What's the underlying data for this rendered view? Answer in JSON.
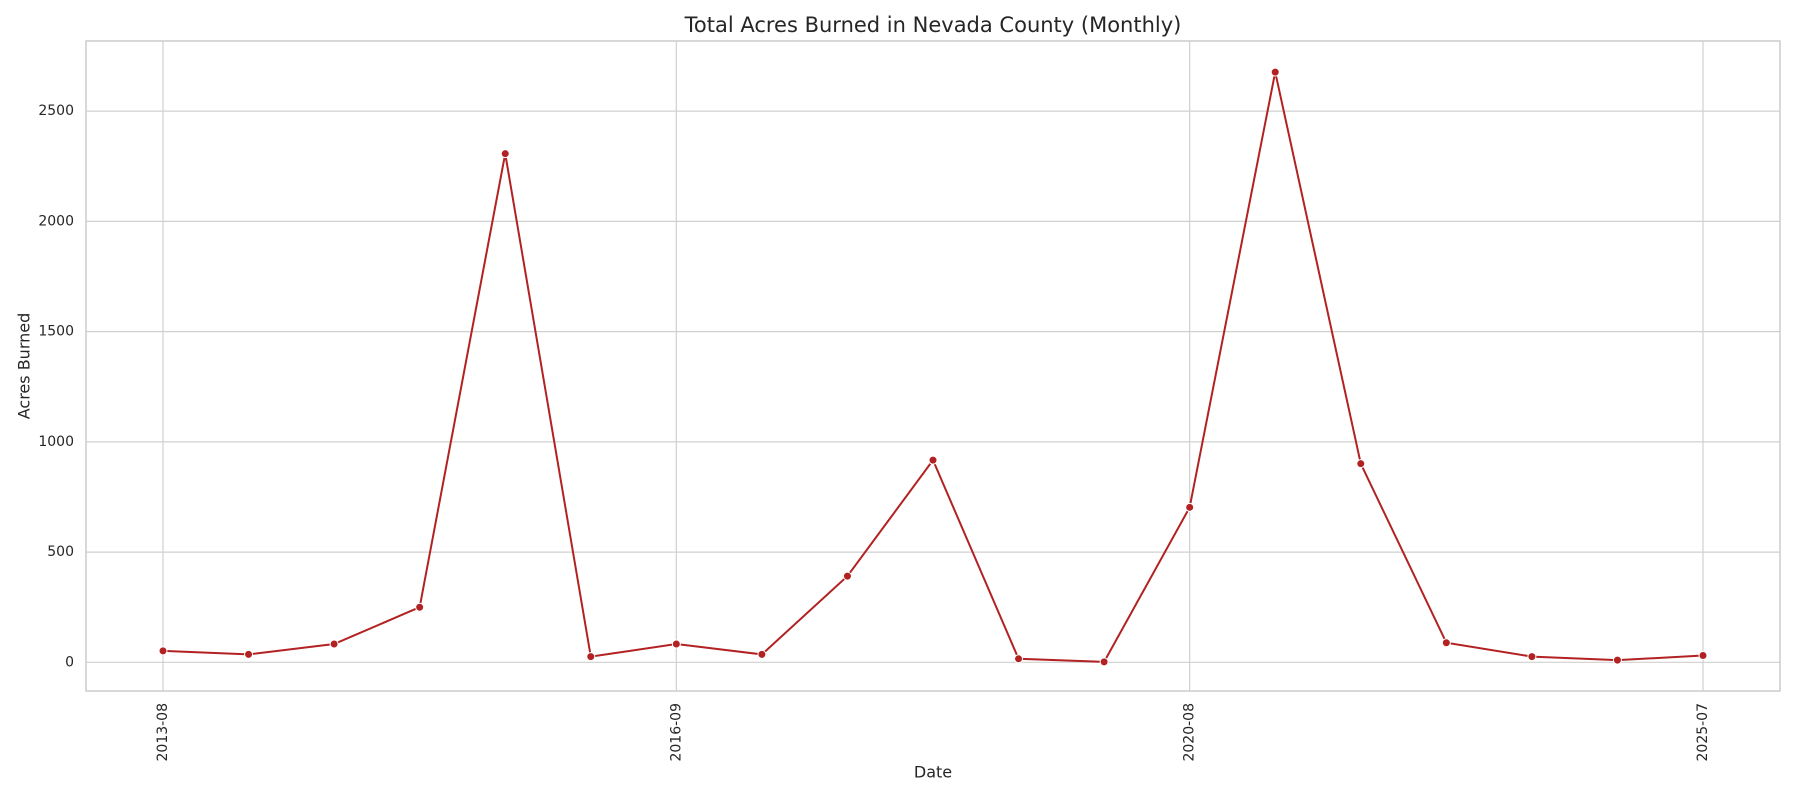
{
  "chart_data": {
    "type": "line",
    "title": "Total Acres Burned in Nevada County (Monthly)",
    "xlabel": "Date",
    "ylabel": "Acres Burned",
    "categories": [
      "2013-08",
      null,
      null,
      null,
      null,
      null,
      "2016-09",
      null,
      null,
      null,
      null,
      null,
      "2020-08",
      null,
      null,
      null,
      null,
      null,
      "2025-07"
    ],
    "series": [
      {
        "name": "Acres Burned",
        "color": "#b22222",
        "values": [
          52,
          36,
          83,
          250,
          2307,
          26,
          83,
          36,
          391,
          917,
          16,
          2,
          703,
          2677,
          901,
          89,
          26,
          10,
          31
        ]
      }
    ],
    "ylim": [
      -130,
      2818
    ],
    "yticks": [
      0,
      500,
      1000,
      1500,
      2000,
      2500
    ],
    "grid": true
  }
}
